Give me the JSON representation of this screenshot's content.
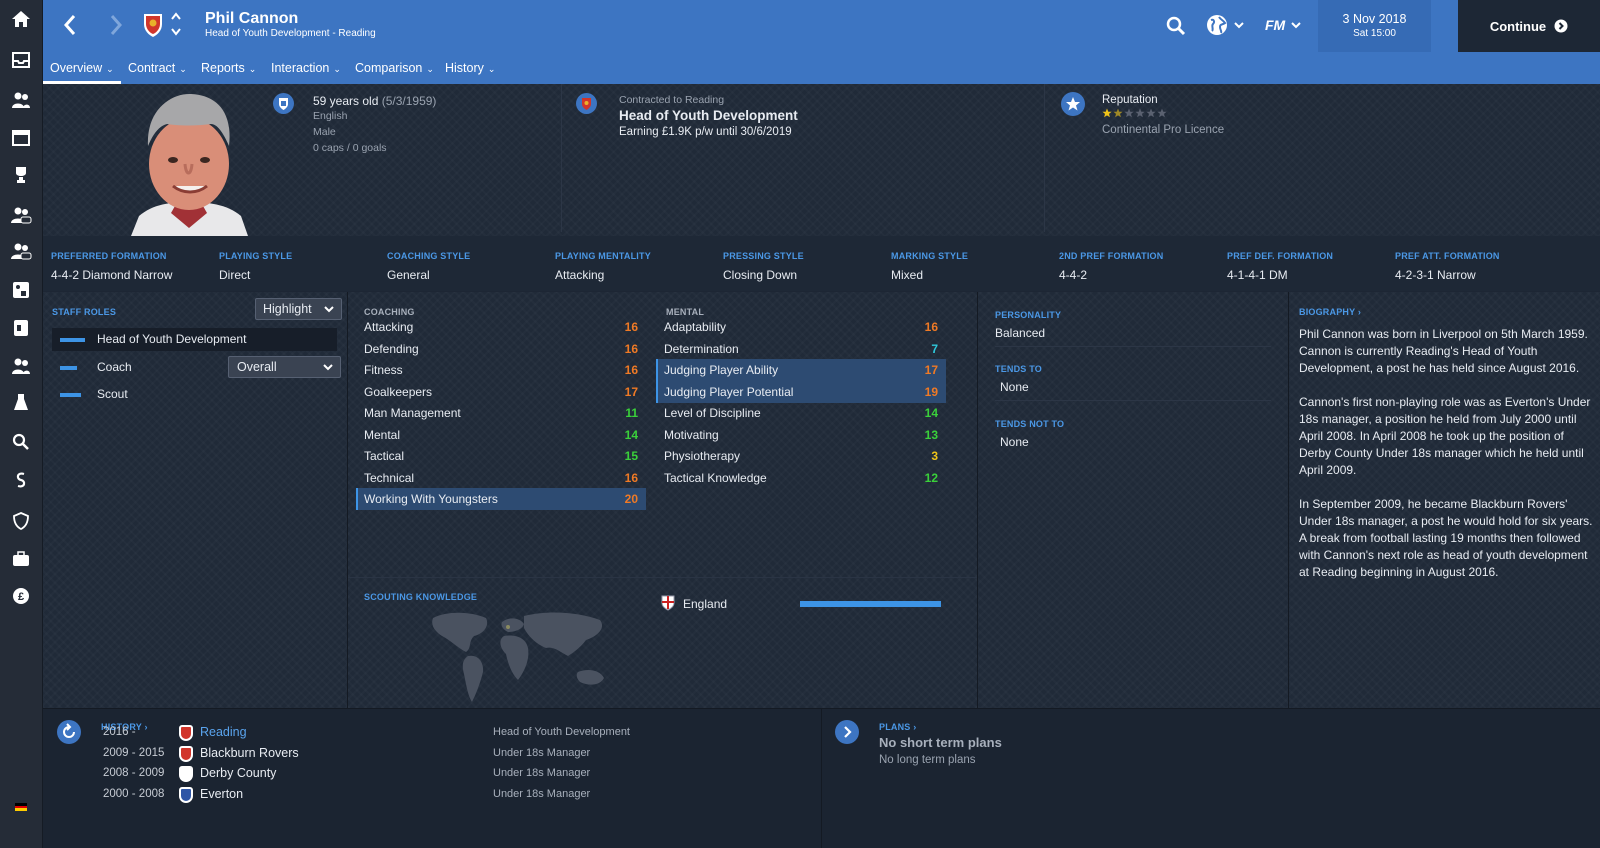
{
  "header": {
    "name": "Phil Cannon",
    "subtitle": "Head of Youth Development - Reading",
    "date": "3 Nov 2018",
    "time": "Sat 15:00",
    "continue_label": "Continue"
  },
  "nav": {
    "tabs": [
      {
        "label": "Overview"
      },
      {
        "label": "Contract"
      },
      {
        "label": "Reports"
      },
      {
        "label": "Interaction"
      },
      {
        "label": "Comparison"
      },
      {
        "label": "History"
      }
    ]
  },
  "profile": {
    "age": "59 years old",
    "dob": "(5/3/1959)",
    "nationality": "English",
    "gender": "Male",
    "caps": "0 caps / 0 goals",
    "contract_label": "Contracted to Reading",
    "role": "Head of Youth Development",
    "earning": "Earning £1.9K p/w until 30/6/2019",
    "reputation_label": "Reputation",
    "reputation_stars": 1.5,
    "licence": "Continental Pro Licence"
  },
  "tactics": [
    {
      "label": "PREFERRED FORMATION",
      "value": "4-4-2 Diamond Narrow"
    },
    {
      "label": "PLAYING STYLE",
      "value": "Direct"
    },
    {
      "label": "COACHING STYLE",
      "value": "General"
    },
    {
      "label": "PLAYING MENTALITY",
      "value": "Attacking"
    },
    {
      "label": "PRESSING STYLE",
      "value": "Closing Down"
    },
    {
      "label": "MARKING STYLE",
      "value": "Mixed"
    },
    {
      "label": "2ND PREF FORMATION",
      "value": "4-4-2"
    },
    {
      "label": "PREF DEF. FORMATION",
      "value": "4-1-4-1 DM"
    },
    {
      "label": "PREF ATT. FORMATION",
      "value": "4-2-3-1 Narrow"
    }
  ],
  "staff_roles": {
    "label": "STAFF ROLES",
    "highlight_label": "Highlight",
    "coach_dropdown": "Overall",
    "roles": [
      {
        "label": "Head of Youth Development"
      },
      {
        "label": "Coach"
      },
      {
        "label": "Scout"
      }
    ]
  },
  "coaching": {
    "label": "COACHING",
    "items": [
      {
        "label": "Attacking",
        "value": "16"
      },
      {
        "label": "Defending",
        "value": "16"
      },
      {
        "label": "Fitness",
        "value": "16"
      },
      {
        "label": "Goalkeepers",
        "value": "17"
      },
      {
        "label": "Man Management",
        "value": "11"
      },
      {
        "label": "Mental",
        "value": "14"
      },
      {
        "label": "Tactical",
        "value": "15"
      },
      {
        "label": "Technical",
        "value": "16"
      },
      {
        "label": "Working With Youngsters",
        "value": "20"
      }
    ]
  },
  "mental": {
    "label": "MENTAL",
    "items": [
      {
        "label": "Adaptability",
        "value": "16"
      },
      {
        "label": "Determination",
        "value": "7"
      },
      {
        "label": "Judging Player Ability",
        "value": "17"
      },
      {
        "label": "Judging Player Potential",
        "value": "19"
      },
      {
        "label": "Level of Discipline",
        "value": "14"
      },
      {
        "label": "Motivating",
        "value": "13"
      },
      {
        "label": "Physiotherapy",
        "value": "3"
      },
      {
        "label": "Tactical Knowledge",
        "value": "12"
      }
    ]
  },
  "personality": {
    "label": "PERSONALITY",
    "value": "Balanced",
    "tends_to_label": "TENDS TO",
    "tends_to": "None",
    "tends_not_to_label": "TENDS NOT TO",
    "tends_not_to": "None"
  },
  "biography": {
    "label": "BIOGRAPHY",
    "p1": "Phil Cannon was born in Liverpool on 5th March 1959. Cannon is currently Reading's Head of Youth Development, a post he has held since August 2016.",
    "p2": "Cannon's first non-playing role was as Everton's Under 18s manager, a position he held from July 2000 until April 2008. In April 2008 he took up the position of Derby County Under 18s manager which he held until April 2009.",
    "p3": "In September 2009, he became Blackburn Rovers' Under 18s manager, a post he would hold for six years. A break from football lasting 19 months then followed with Cannon's next role as head of youth development at Reading beginning in August 2016."
  },
  "scouting": {
    "label": "SCOUTING KNOWLEDGE",
    "country": "England",
    "knowledge_fraction": 1.0
  },
  "history": {
    "label": "HISTORY",
    "rows": [
      {
        "years": "2016 -",
        "club": "Reading",
        "role": "Head of Youth Development"
      },
      {
        "years": "2009 - 2015",
        "club": "Blackburn Rovers",
        "role": "Under 18s Manager"
      },
      {
        "years": "2008 - 2009",
        "club": "Derby County",
        "role": "Under 18s Manager"
      },
      {
        "years": "2000 - 2008",
        "club": "Everton",
        "role": "Under 18s Manager"
      }
    ]
  },
  "plans": {
    "label": "PLANS",
    "short": "No short term plans",
    "long": "No long term plans"
  },
  "colors": {
    "accent": "#3d75c2",
    "orange": "#f07a25",
    "green": "#3ad13a",
    "cyan": "#2fc9dc",
    "yellow": "#f0c419"
  }
}
